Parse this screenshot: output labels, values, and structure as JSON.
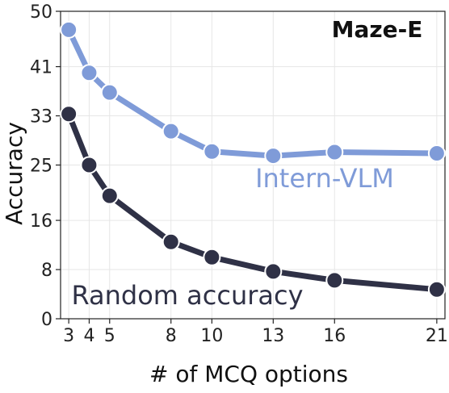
{
  "chart_data": {
    "type": "line",
    "title": "Maze-E",
    "xlabel": "# of MCQ options",
    "ylabel": "Accuracy",
    "x": [
      3,
      4,
      5,
      8,
      10,
      13,
      16,
      21
    ],
    "xticks": [
      3,
      4,
      5,
      8,
      10,
      13,
      16,
      21
    ],
    "yticks": [
      0,
      8,
      16,
      25,
      33,
      41,
      50
    ],
    "xlim": [
      2.6,
      21.4
    ],
    "ylim": [
      0,
      50
    ],
    "grid": true,
    "series": [
      {
        "name": "Intern-VLM",
        "color": "#7f9bd8",
        "values": [
          47.0,
          40.0,
          36.8,
          30.5,
          27.2,
          26.5,
          27.1,
          26.9
        ]
      },
      {
        "name": "Random accuracy",
        "color": "#2f3146",
        "values": [
          33.3,
          25.0,
          20.0,
          12.5,
          10.0,
          7.7,
          6.25,
          4.76
        ]
      }
    ]
  }
}
